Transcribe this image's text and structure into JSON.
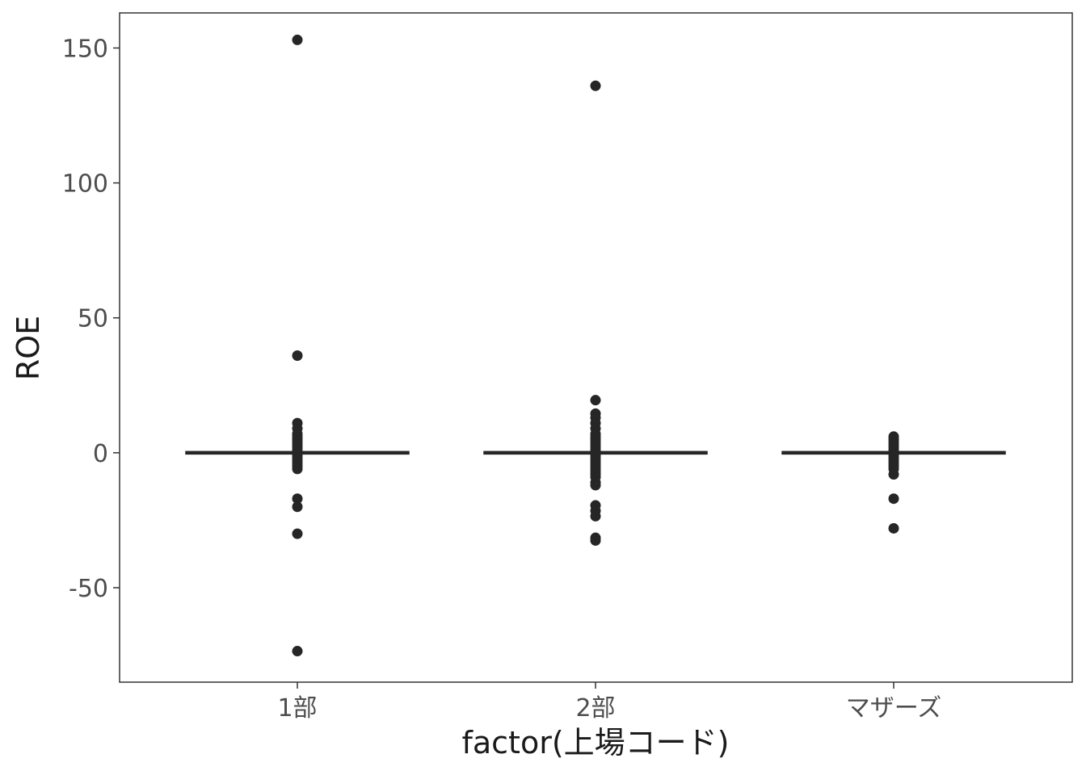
{
  "chart_data": {
    "type": "box",
    "categories": [
      "1部",
      "2部",
      "マザーズ"
    ],
    "xlabel": "factor(上場コード)",
    "ylabel": "ROE",
    "ylim": [
      -85,
      163
    ],
    "yticks": [
      -50,
      0,
      50,
      100,
      150
    ],
    "ytick_labels": [
      "-50",
      "0",
      "50",
      "100",
      "150"
    ],
    "grid": false,
    "colors": {
      "points": "#262626",
      "box": "#262626",
      "axis": "#333333",
      "tick_text": "#4d4d4d"
    },
    "series": [
      {
        "category": "1部",
        "median": 0,
        "q1": 0,
        "q3": 0,
        "outliers": [
          153,
          36,
          11,
          9,
          7,
          6,
          5,
          4,
          3,
          2,
          1,
          -1,
          -2,
          -3,
          -4,
          -5,
          -6,
          -17,
          -20,
          -30,
          -73.5
        ]
      },
      {
        "category": "2部",
        "median": 0,
        "q1": 0,
        "q3": 0,
        "outliers": [
          136,
          19.5,
          14.5,
          13,
          11,
          9,
          7,
          6,
          5,
          4,
          3,
          2,
          1,
          -1,
          -2,
          -3,
          -4,
          -5,
          -6,
          -7,
          -8,
          -9,
          -11,
          -12,
          -19.5,
          -21.5,
          -23.5,
          -31.5,
          -32.5
        ]
      },
      {
        "category": "マザーズ",
        "median": 0,
        "q1": 0,
        "q3": 0,
        "outliers": [
          6,
          5,
          4,
          3,
          2,
          1,
          -1,
          -2,
          -3,
          -4,
          -5,
          -6,
          -8,
          -17,
          -28
        ]
      }
    ]
  }
}
